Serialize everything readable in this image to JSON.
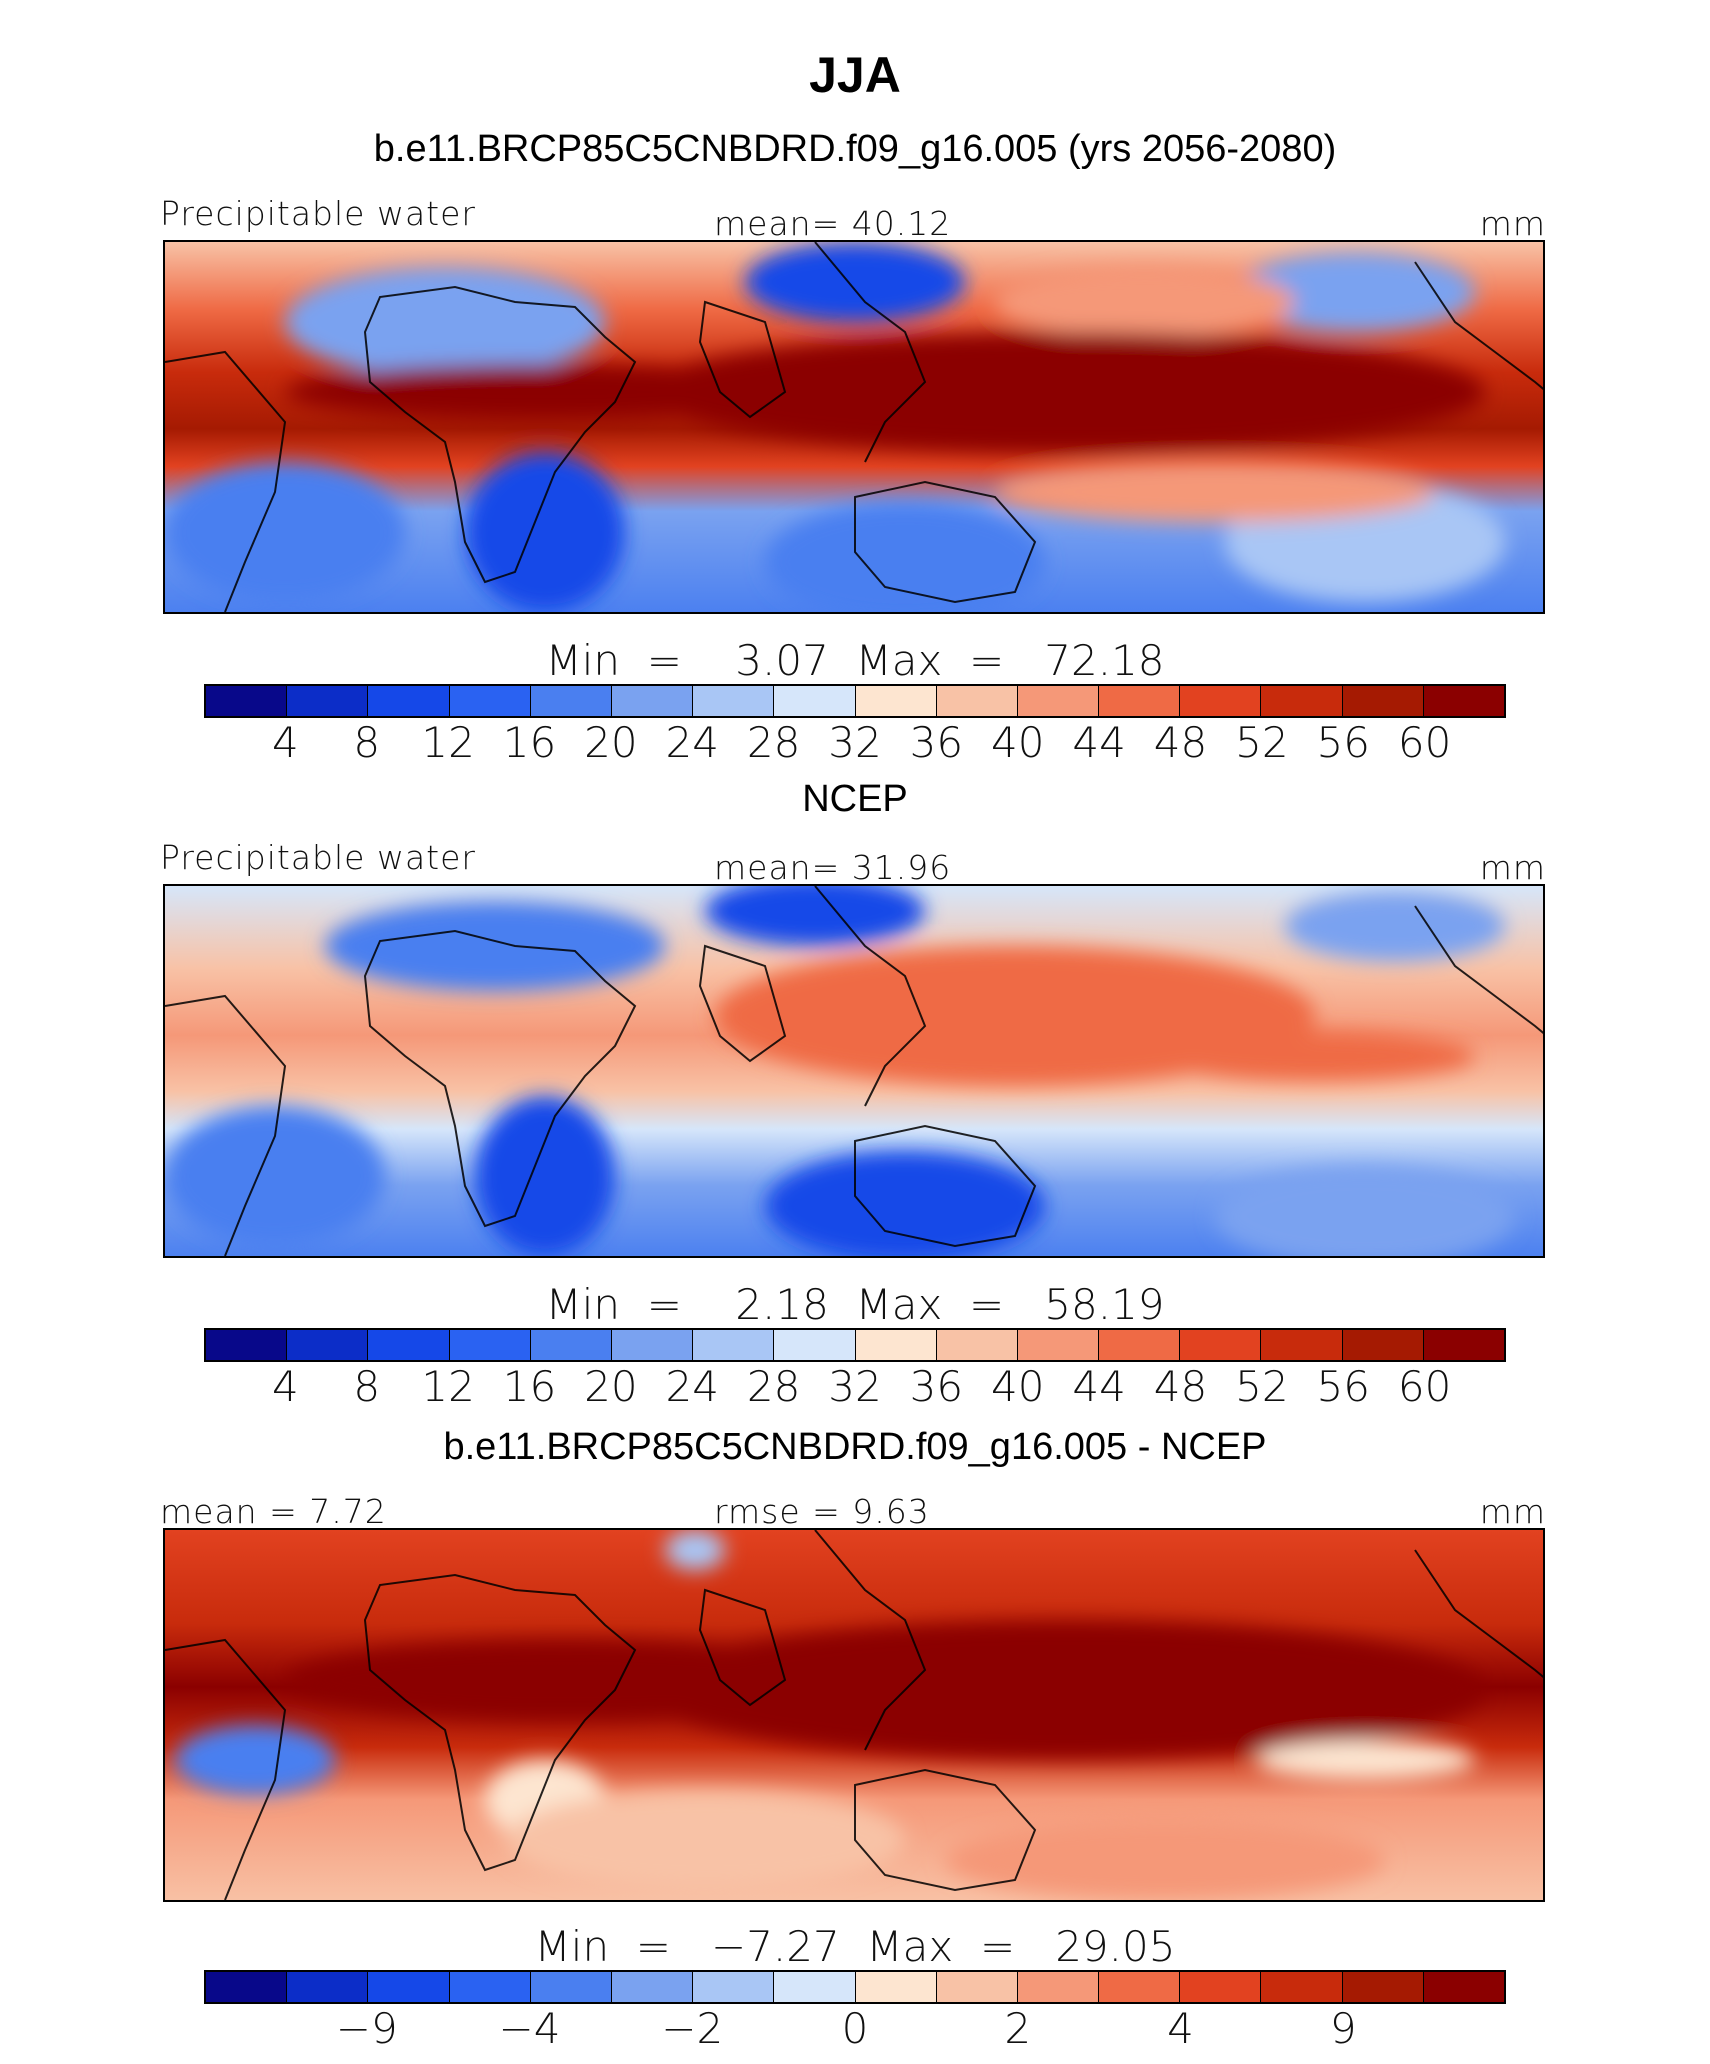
{
  "figure": {
    "season": "JJA"
  },
  "colors": [
    "#08088a",
    "#0c2dc8",
    "#1548e8",
    "#2a62f2",
    "#4a7ff0",
    "#7aa2f0",
    "#a9c6f5",
    "#d6e6fa",
    "#fde5d0",
    "#f8c2a6",
    "#f59878",
    "#ef6a45",
    "#e24220",
    "#c82b0c",
    "#a51a02",
    "#8b0000"
  ],
  "panels": [
    {
      "title": "b.e11.BRCP85C5CNBDRD.f09_g16.005 (yrs 2056-2080)",
      "left_label": "Precipitable water",
      "center_label": "mean=   40.12",
      "units": "mm",
      "minmax": "Min  =    3.07  Max  =   72.18",
      "colorbar_ticks": [
        "4",
        "8",
        "12",
        "16",
        "20",
        "24",
        "28",
        "32",
        "36",
        "40",
        "44",
        "48",
        "52",
        "56",
        "60"
      ],
      "field_icon": "model-precipitable-water-map"
    },
    {
      "title": "NCEP",
      "left_label": "Precipitable water",
      "center_label": "mean=   31.96",
      "units": "mm",
      "minmax": "Min  =    2.18  Max  =   58.19",
      "colorbar_ticks": [
        "4",
        "8",
        "12",
        "16",
        "20",
        "24",
        "28",
        "32",
        "36",
        "40",
        "44",
        "48",
        "52",
        "56",
        "60"
      ],
      "field_icon": "ncep-precipitable-water-map"
    },
    {
      "title": "b.e11.BRCP85C5CNBDRD.f09_g16.005 - NCEP",
      "left_label": "mean =    7.72",
      "center_label": "rmse =    9.63",
      "units": "mm",
      "minmax": "Min  =   −7.27  Max  =   29.05",
      "colorbar_ticks": [
        "−9",
        "−4",
        "−2",
        "0",
        "2",
        "4",
        "9"
      ],
      "field_icon": "difference-precipitable-water-map"
    }
  ]
}
